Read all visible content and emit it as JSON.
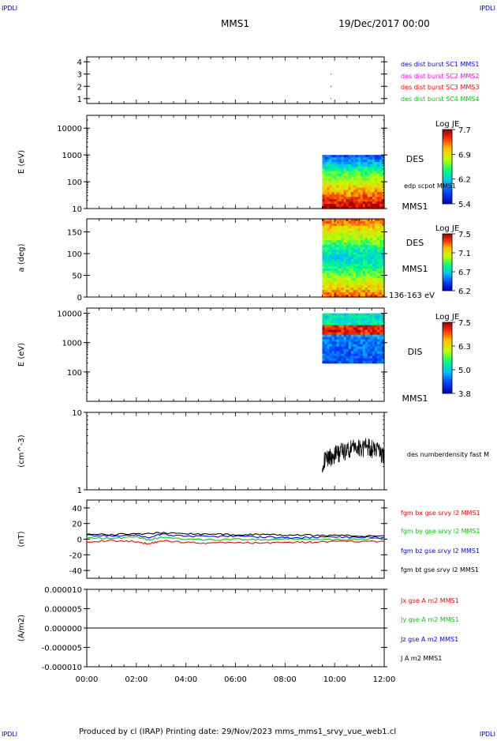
{
  "header": {
    "corner_tl": "IPDLI",
    "corner_tr": "IPDLI",
    "corner_bl": "IPDLI",
    "corner_br": "IPDLI",
    "spacecraft": "MMS1",
    "date": "19/Dec/2017 00:00"
  },
  "footer": {
    "text": "Produced by cl (IRAP)   Printing date: 29/Nov/2023   mms_mms1_srvy_vue_web1.cl"
  },
  "colors": {
    "blue": "#0000ff",
    "magenta": "#ff00ff",
    "red": "#ff0000",
    "green": "#00cc00",
    "black": "#000000"
  },
  "chart_data": [
    {
      "type": "scatter",
      "id": "burst",
      "ylim": [
        0.6,
        4.4
      ],
      "yticks": [
        1,
        2,
        3,
        4
      ],
      "yticklabels": [
        "1",
        "2",
        "3",
        "4"
      ],
      "xlim": [
        0,
        12
      ],
      "series": [
        {
          "name": "des dist burst SC1 MMS1",
          "color": "#0000ff",
          "x": [],
          "y": []
        },
        {
          "name": "des dist burst SC2 MMS2",
          "color": "#ff00ff",
          "x": [
            9.85
          ],
          "y": [
            3
          ]
        },
        {
          "name": "des dist burst SC3 MMS3",
          "color": "#ff0000",
          "x": [
            9.85
          ],
          "y": [
            2
          ]
        },
        {
          "name": "des dist burst SC4 MMS4",
          "color": "#00cc00",
          "x": [
            9.85
          ],
          "y": [
            1
          ]
        }
      ]
    },
    {
      "type": "heatmap",
      "id": "des_energy",
      "ylabel": "E (eV)",
      "yscale": "log",
      "ylim": [
        10,
        30000
      ],
      "yticks": [
        10,
        100,
        1000,
        10000
      ],
      "yticklabels": [
        "10",
        "100",
        "1000",
        "10000"
      ],
      "xlim": [
        0,
        12
      ],
      "data_x_range": [
        9.5,
        12
      ],
      "data_y_range": [
        10,
        1000
      ],
      "right_labels": [
        "DES",
        "edp scpot MMS1",
        "MMS1"
      ],
      "colorbar": {
        "title": "Log JE",
        "labels": [
          "7.7",
          "6.9",
          "6.2",
          "5.4"
        ],
        "range": [
          5.4,
          7.7
        ]
      }
    },
    {
      "type": "heatmap",
      "id": "des_pitch",
      "ylabel": "a (deg)",
      "ylim": [
        0,
        180
      ],
      "yticks": [
        0,
        50,
        100,
        150
      ],
      "yticklabels": [
        "0",
        "50",
        "100",
        "150"
      ],
      "xlim": [
        0,
        12
      ],
      "data_x_range": [
        9.5,
        12
      ],
      "data_y_range": [
        0,
        180
      ],
      "right_labels": [
        "DES",
        "MMS1",
        "136-163 eV"
      ],
      "colorbar": {
        "title": "Log JE",
        "labels": [
          "7.5",
          "7.1",
          "6.7",
          "6.2"
        ],
        "range": [
          6.2,
          7.5
        ]
      }
    },
    {
      "type": "heatmap",
      "id": "dis_energy",
      "ylabel": "E (eV)",
      "yscale": "log",
      "ylim": [
        10,
        15000
      ],
      "yticks": [
        100,
        1000,
        10000
      ],
      "yticklabels": [
        "100",
        "1000",
        "10000"
      ],
      "xlim": [
        0,
        12
      ],
      "data_x_range": [
        9.5,
        12
      ],
      "data_y_range": [
        200,
        10000
      ],
      "right_labels": [
        "DIS",
        "MMS1"
      ],
      "colorbar": {
        "title": "Log JE",
        "labels": [
          "7.5",
          "6.3",
          "5.0",
          "3.8"
        ],
        "range": [
          3.8,
          7.5
        ]
      }
    },
    {
      "type": "line",
      "id": "density",
      "ylabel": "(cm^-3)",
      "yscale": "log",
      "ylim": [
        1,
        10
      ],
      "yticks": [
        1,
        10
      ],
      "yticklabels": [
        "1",
        "10"
      ],
      "xlim": [
        0,
        12
      ],
      "series": [
        {
          "name": "des numberdensity fast M",
          "color": "#000000",
          "x": [
            9.5,
            9.7,
            9.9,
            10.1,
            10.3,
            10.5,
            10.7,
            10.9,
            11.1,
            11.3,
            11.5,
            11.7,
            11.9,
            12.0
          ],
          "y": [
            2.3,
            2.6,
            2.8,
            3.0,
            3.2,
            3.3,
            3.5,
            3.6,
            3.6,
            3.7,
            3.5,
            3.4,
            2.9,
            2.8
          ]
        }
      ]
    },
    {
      "type": "line",
      "id": "bfield",
      "ylabel": "(nT)",
      "ylim": [
        -50,
        50
      ],
      "yticks": [
        -40,
        -20,
        0,
        20,
        40
      ],
      "yticklabels": [
        "-40",
        "-20",
        "0",
        "20",
        "40"
      ],
      "xlim": [
        0,
        12
      ],
      "series": [
        {
          "name": "fgm bx gse srvy l2 MMS1",
          "color": "#ff0000",
          "x": [
            0,
            1,
            2,
            2.5,
            3,
            4,
            5,
            6,
            7,
            8,
            9,
            10,
            11,
            12
          ],
          "y": [
            -3,
            -2,
            -3,
            -6,
            -2,
            -4,
            -5,
            -4,
            -5,
            -4,
            -4,
            -3,
            -3,
            -3
          ]
        },
        {
          "name": "fgm by gse srvy l2 MMS1",
          "color": "#00cc00",
          "x": [
            0,
            1,
            2,
            2.5,
            3,
            4,
            5,
            6,
            7,
            8,
            9,
            10,
            11,
            12
          ],
          "y": [
            2,
            1,
            3,
            -1,
            2,
            0,
            -1,
            0,
            -1,
            0,
            0,
            -1,
            0,
            0
          ]
        },
        {
          "name": "fgm bz gse srvy l2 MMS1",
          "color": "#0000ff",
          "x": [
            0,
            1,
            2,
            2.5,
            3,
            4,
            5,
            6,
            7,
            8,
            9,
            10,
            11,
            12
          ],
          "y": [
            5,
            4,
            5,
            2,
            6,
            4,
            3,
            4,
            3,
            2,
            2,
            3,
            2,
            2
          ]
        },
        {
          "name": "fgm bt gse srvy l2 MMS1",
          "color": "#000000",
          "x": [
            0,
            1,
            2,
            3,
            4,
            5,
            6,
            7,
            8,
            9,
            10,
            11,
            12
          ],
          "y": [
            6,
            6,
            7,
            8,
            7,
            6,
            6,
            6,
            5,
            5,
            5,
            4,
            4
          ]
        }
      ]
    },
    {
      "type": "line",
      "id": "current",
      "ylabel": "(A/m2)",
      "ylim": [
        -1e-05,
        1e-05
      ],
      "yticks": [
        -1e-05,
        -5e-06,
        0,
        5e-06,
        1e-05
      ],
      "yticklabels": [
        "-0.000010",
        "-0.000005",
        "0.000000",
        "0.000005",
        "0.000010"
      ],
      "xlim": [
        0,
        12
      ],
      "xticks": [
        0,
        2,
        4,
        6,
        8,
        10,
        12
      ],
      "xticklabels": [
        "00:00",
        "02:00",
        "04:00",
        "06:00",
        "08:00",
        "10:00",
        "12:00"
      ],
      "series": [
        {
          "name": "Jx gse A m2 MMS1",
          "color": "#ff0000",
          "x": [
            0,
            12
          ],
          "y": [
            0,
            0
          ]
        },
        {
          "name": "Jy gse A m2 MMS1",
          "color": "#00cc00",
          "x": [
            0,
            12
          ],
          "y": [
            0,
            0
          ]
        },
        {
          "name": "Jz gse A m2 MMS1",
          "color": "#0000ff",
          "x": [
            0,
            12
          ],
          "y": [
            0,
            0
          ]
        },
        {
          "name": "J A m2 MMS1",
          "color": "#000000",
          "x": [
            0,
            12
          ],
          "y": [
            0,
            0
          ]
        }
      ]
    }
  ]
}
